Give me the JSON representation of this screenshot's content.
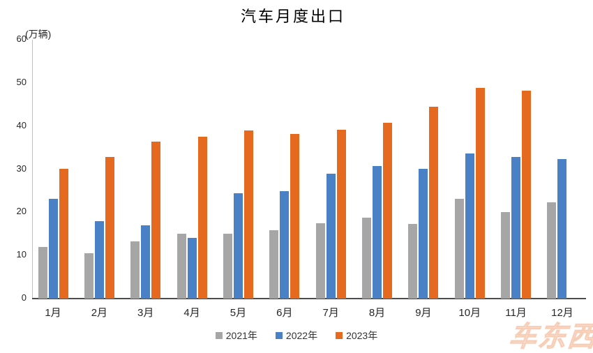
{
  "chart_data": {
    "type": "bar",
    "title": "汽车月度出口",
    "unit_label": "(万辆)",
    "categories": [
      "1月",
      "2月",
      "3月",
      "4月",
      "5月",
      "6月",
      "7月",
      "8月",
      "9月",
      "10月",
      "11月",
      "12月"
    ],
    "series": [
      {
        "name": "2021年",
        "color": "#A6A6A6",
        "values": [
          11.9,
          10.5,
          13.2,
          15.1,
          15.0,
          15.8,
          17.4,
          18.7,
          17.3,
          23.1,
          20.0,
          22.3
        ]
      },
      {
        "name": "2022年",
        "color": "#4A80C6",
        "values": [
          23.1,
          18.0,
          17.0,
          14.1,
          24.5,
          24.9,
          29.0,
          30.8,
          30.1,
          33.7,
          32.9,
          32.4
        ]
      },
      {
        "name": "2023年",
        "color": "#E56A1F",
        "values": [
          30.1,
          32.9,
          36.4,
          37.6,
          38.9,
          38.2,
          39.2,
          40.8,
          44.4,
          48.8,
          48.2,
          null
        ]
      }
    ],
    "ylim": [
      0,
      60
    ],
    "y_ticks": [
      0,
      10,
      20,
      30,
      40,
      50,
      60
    ],
    "grid": false,
    "legend_position": "bottom",
    "axis_colors": {
      "x_axis_line": "#4d4d4d",
      "y_axis_line": "#bfbfbf",
      "tick_text": "#262626"
    }
  },
  "watermark": {
    "text": "车东西"
  }
}
